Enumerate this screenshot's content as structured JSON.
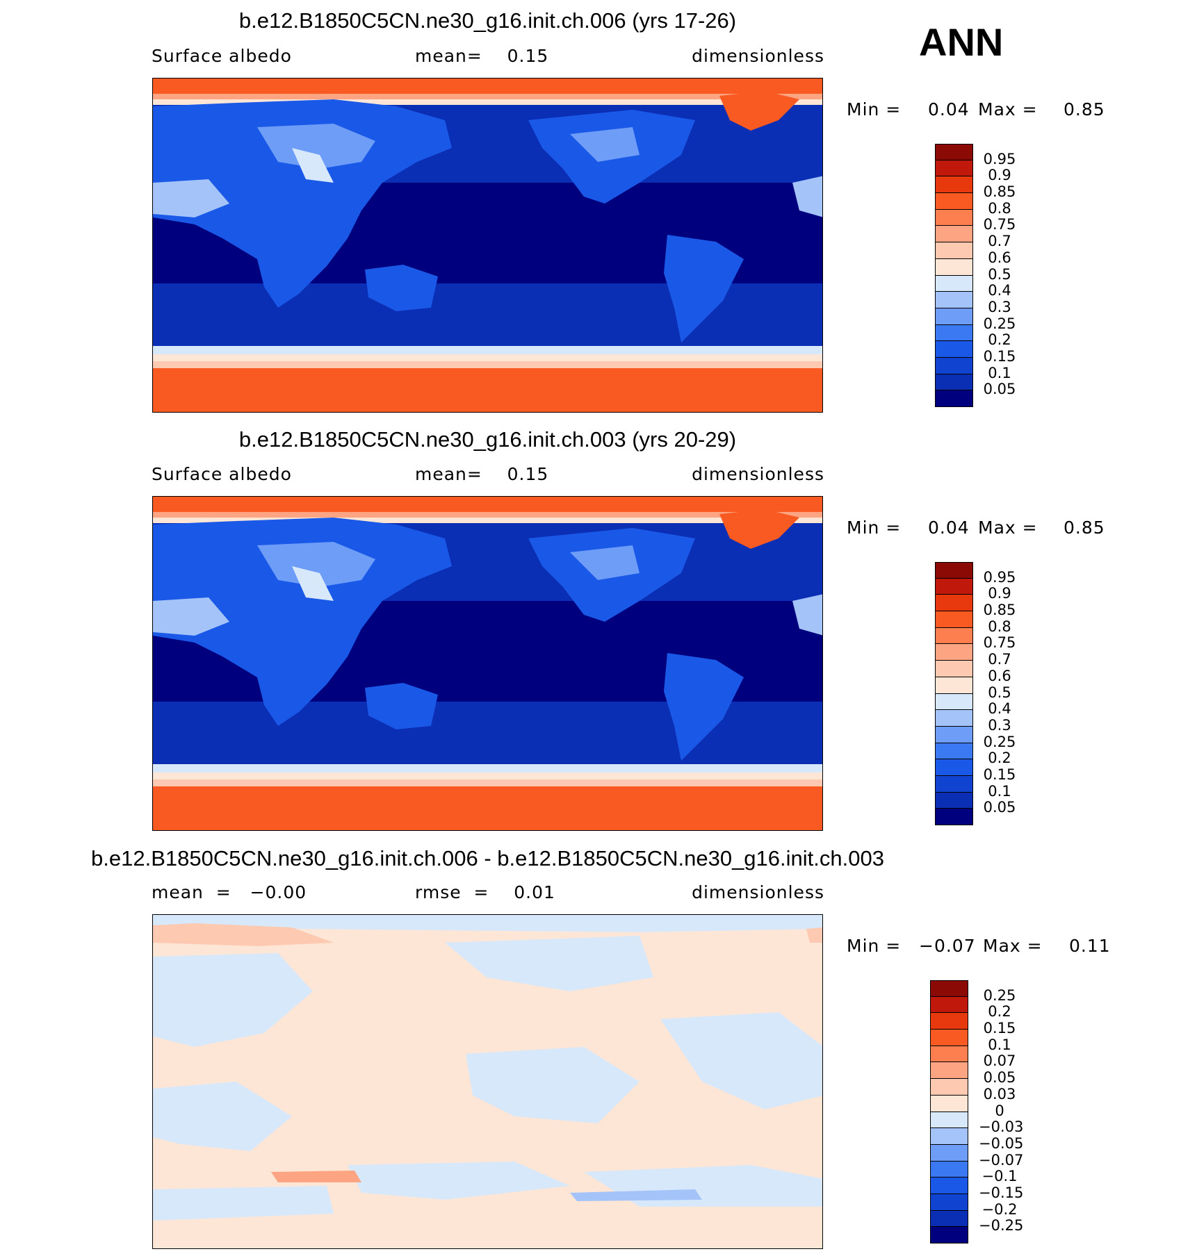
{
  "season": "ANN",
  "colors": {
    "abs": [
      "#00007f",
      "#0a2eb4",
      "#1043cf",
      "#1a59e8",
      "#3b79f2",
      "#6e9df7",
      "#a4c3f9",
      "#d8e8fb",
      "#fde6d6",
      "#fdc9b1",
      "#fda582",
      "#fd7f4f",
      "#f95a22",
      "#e8390e",
      "#c0180a",
      "#8c0a05"
    ],
    "diff": [
      "#00007f",
      "#0a2eb4",
      "#1043cf",
      "#1a59e8",
      "#3b79f2",
      "#6e9df7",
      "#a4c3f9",
      "#d8e8fb",
      "#fde6d6",
      "#fdc9b1",
      "#fda582",
      "#fd7f4f",
      "#f95a22",
      "#e8390e",
      "#c0180a",
      "#8c0a05"
    ]
  },
  "panels": [
    {
      "title": "b.e12.B1850C5CN.ne30_g16.init.ch.006 (yrs 17-26)",
      "left_text": "Surface  albedo",
      "center_text": "mean=    0.15",
      "right_text": "dimensionless",
      "min_label": "Min =",
      "min_value": "0.04",
      "max_label": "Max =",
      "max_value": "0.85",
      "colorbar_labels": [
        "0.95",
        "0.9",
        "0.85",
        "0.8",
        "0.75",
        "0.7",
        "0.6",
        "0.5",
        "0.4",
        "0.3",
        "0.25",
        "0.2",
        "0.15",
        "0.1",
        "0.05"
      ]
    },
    {
      "title": "b.e12.B1850C5CN.ne30_g16.init.ch.003 (yrs 20-29)",
      "left_text": "Surface  albedo",
      "center_text": "mean=    0.15",
      "right_text": "dimensionless",
      "min_label": "Min =",
      "min_value": "0.04",
      "max_label": "Max =",
      "max_value": "0.85",
      "colorbar_labels": [
        "0.95",
        "0.9",
        "0.85",
        "0.8",
        "0.75",
        "0.7",
        "0.6",
        "0.5",
        "0.4",
        "0.3",
        "0.25",
        "0.2",
        "0.15",
        "0.1",
        "0.05"
      ]
    },
    {
      "title": "b.e12.B1850C5CN.ne30_g16.init.ch.006 - b.e12.B1850C5CN.ne30_g16.init.ch.003",
      "left_text": "mean  =   −0.00",
      "center_text": "rmse  =    0.01",
      "right_text": "dimensionless",
      "min_label": "Min =",
      "min_value": "−0.07",
      "max_label": "Max =",
      "max_value": "0.11",
      "colorbar_labels": [
        "0.25",
        "0.2",
        "0.15",
        "0.1",
        "0.07",
        "0.05",
        "0.03",
        "0",
        "−0.03",
        "−0.05",
        "−0.07",
        "−0.1",
        "−0.15",
        "−0.2",
        "−0.25"
      ]
    }
  ]
}
